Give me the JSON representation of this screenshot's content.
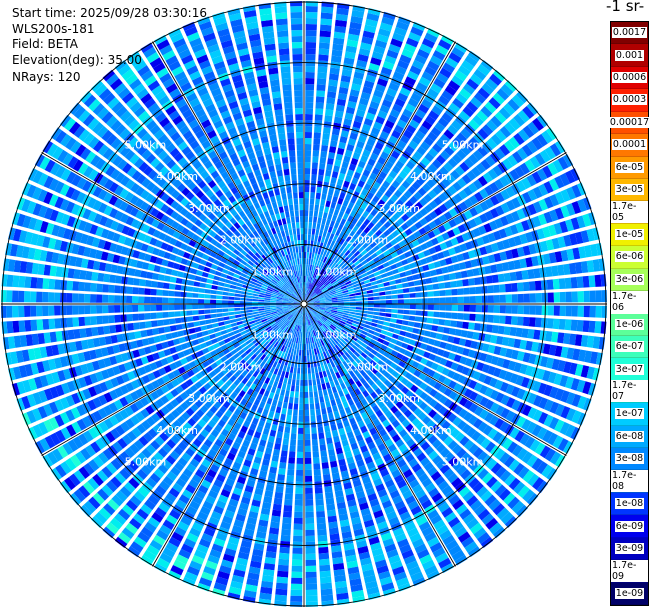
{
  "info": {
    "start_time": "Start time: 2025/09/28 03:30:16",
    "instrument": "WLS200s-181",
    "field": "Field: BETA",
    "elevation": "Elevation(deg): 35.00",
    "nrays": "NRays: 120"
  },
  "colorbar": {
    "title": "-1 sr-",
    "entries": [
      {
        "label": "0.0017",
        "color": "#800000"
      },
      {
        "label": "0.001",
        "color": "#b00000"
      },
      {
        "label": "0.0006",
        "color": "#e00000"
      },
      {
        "label": "0.0003",
        "color": "#ff2000"
      },
      {
        "label": "0.00017",
        "color": "#ff5000"
      },
      {
        "label": "0.0001",
        "color": "#ff7800"
      },
      {
        "label": "6e-05",
        "color": "#ff9a00"
      },
      {
        "label": "3e-05",
        "color": "#ffb800"
      },
      {
        "label": "1.7e-05",
        "color": "#ffd800"
      },
      {
        "label": "1e-05",
        "color": "#f0f000"
      },
      {
        "label": "6e-06",
        "color": "#ccff33"
      },
      {
        "label": "3e-06",
        "color": "#a6ff5a"
      },
      {
        "label": "1.7e-06",
        "color": "#7dff7a"
      },
      {
        "label": "1e-06",
        "color": "#5cff99"
      },
      {
        "label": "6e-07",
        "color": "#3cffbb"
      },
      {
        "label": "3e-07",
        "color": "#20ffd8"
      },
      {
        "label": "1.7e-07",
        "color": "#00eeee"
      },
      {
        "label": "1e-07",
        "color": "#00ccff"
      },
      {
        "label": "6e-08",
        "color": "#00aaff"
      },
      {
        "label": "3e-08",
        "color": "#0088ff"
      },
      {
        "label": "1.7e-08",
        "color": "#0060ff"
      },
      {
        "label": "1e-08",
        "color": "#0035ff"
      },
      {
        "label": "6e-09",
        "color": "#0000ee"
      },
      {
        "label": "3e-09",
        "color": "#0000c0"
      },
      {
        "label": "1.7e-09",
        "color": "#000090"
      },
      {
        "label": "1e-09",
        "color": "#000068"
      }
    ]
  },
  "chart_data": {
    "type": "heatmap",
    "projection": "polar",
    "field": "BETA",
    "n_rays": 120,
    "elevation_deg": 35.0,
    "range_rings_km": [
      1,
      2,
      3,
      4,
      5
    ],
    "range_labels": [
      "1.00km",
      "2.00km",
      "3.00km",
      "4.00km",
      "5.00km"
    ],
    "max_range_km": 5.0,
    "azimuth_spokes_deg": [
      0,
      30,
      60,
      90,
      120,
      150,
      180,
      210,
      240,
      270,
      300,
      330
    ],
    "color_scale": "log",
    "value_range": [
      1e-09,
      0.0017
    ],
    "dominant_value_range": [
      1.7e-08,
      1e-07
    ]
  }
}
